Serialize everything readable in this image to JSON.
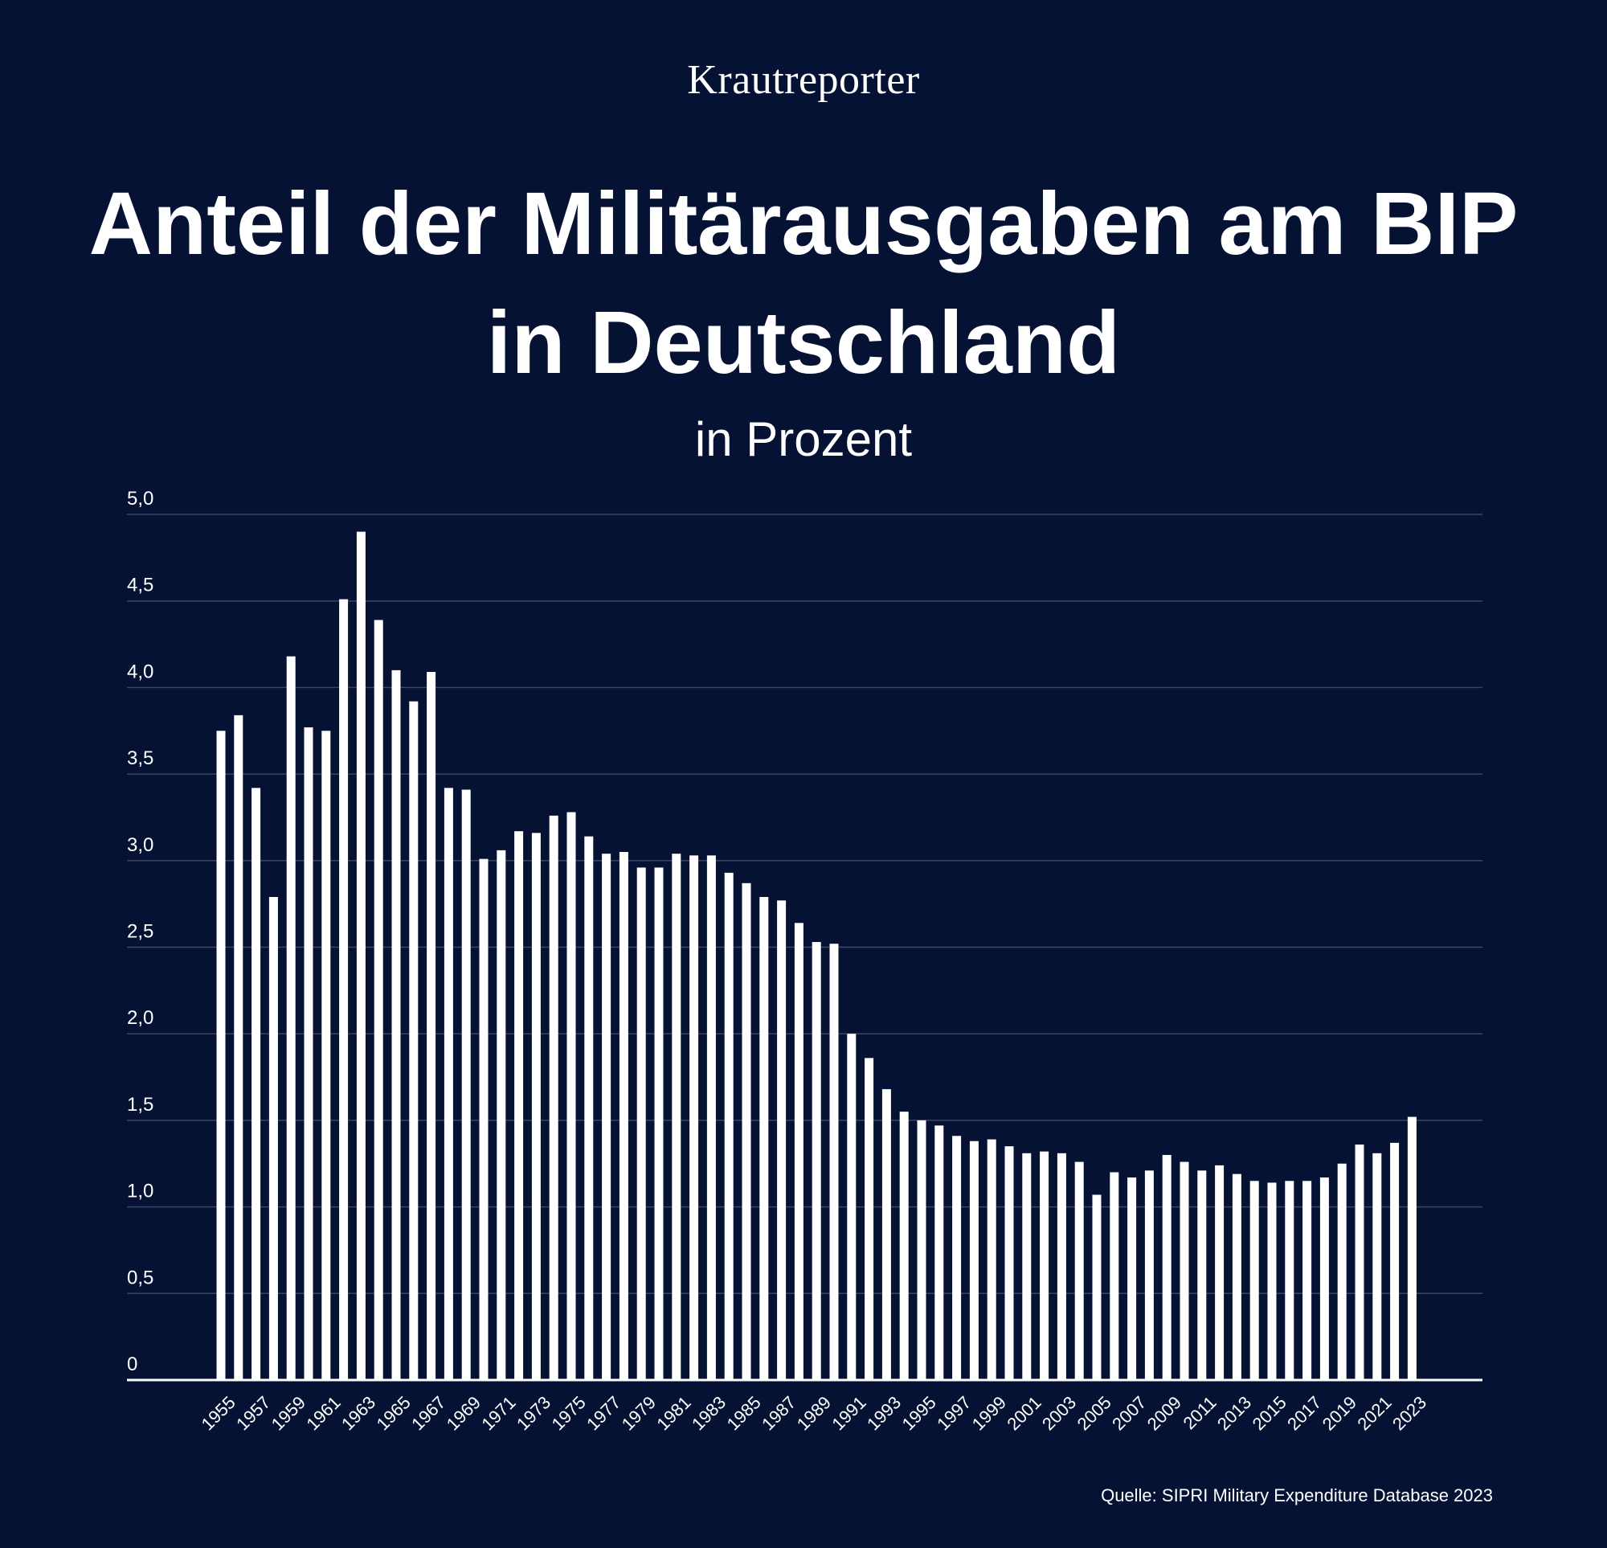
{
  "brand": "Krautreporter",
  "title_line1": "Anteil der Militärausgaben am BIP",
  "title_line2": "in Deutschland",
  "subtitle": "in Prozent",
  "source": "Quelle:  SIPRI Military Expenditure Database 2023",
  "colors": {
    "background": "#061234",
    "bar": "#ffffff",
    "grid": "#3a4566",
    "text": "#ffffff"
  },
  "chart_data": {
    "type": "bar",
    "title": "Anteil der Militärausgaben am BIP in Deutschland",
    "subtitle": "in Prozent",
    "xlabel": "",
    "ylabel": "",
    "ylim": [
      0,
      5
    ],
    "yticks": [
      0,
      0.5,
      1,
      1.5,
      2,
      2.5,
      3,
      3.5,
      4,
      4.5,
      5
    ],
    "ytick_labels": [
      "0",
      "0,5",
      "1,0",
      "1,5",
      "2,0",
      "2,5",
      "3,0",
      "3,5",
      "4,0",
      "4,5",
      "5,0"
    ],
    "grid": true,
    "categories": [
      1955,
      1956,
      1957,
      1958,
      1959,
      1960,
      1961,
      1962,
      1963,
      1964,
      1965,
      1966,
      1967,
      1968,
      1969,
      1970,
      1971,
      1972,
      1973,
      1974,
      1975,
      1976,
      1977,
      1978,
      1979,
      1980,
      1981,
      1982,
      1983,
      1984,
      1985,
      1986,
      1987,
      1988,
      1989,
      1990,
      1991,
      1992,
      1993,
      1994,
      1995,
      1996,
      1997,
      1998,
      1999,
      2000,
      2001,
      2002,
      2003,
      2004,
      2005,
      2006,
      2007,
      2008,
      2009,
      2010,
      2011,
      2012,
      2013,
      2014,
      2015,
      2016,
      2017,
      2018,
      2019,
      2020,
      2021,
      2022,
      2023
    ],
    "xtick_labels": [
      "1955",
      "1957",
      "1959",
      "1961",
      "1963",
      "1965",
      "1967",
      "1969",
      "1971",
      "1973",
      "1975",
      "1977",
      "1979",
      "1981",
      "1983",
      "1985",
      "1987",
      "1989",
      "1991",
      "1993",
      "1995",
      "1997",
      "1999",
      "2001",
      "2003",
      "2005",
      "2007",
      "2009",
      "2011",
      "2013",
      "2015",
      "2017",
      "2019",
      "2021",
      "2023"
    ],
    "values": [
      3.75,
      3.84,
      3.42,
      2.79,
      4.18,
      3.77,
      3.75,
      4.51,
      4.9,
      4.39,
      4.1,
      3.92,
      4.09,
      3.42,
      3.41,
      3.01,
      3.06,
      3.17,
      3.16,
      3.26,
      3.28,
      3.14,
      3.04,
      3.05,
      2.96,
      2.96,
      3.04,
      3.03,
      3.03,
      2.93,
      2.87,
      2.79,
      2.77,
      2.64,
      2.53,
      2.52,
      2.0,
      1.86,
      1.68,
      1.55,
      1.5,
      1.47,
      1.41,
      1.38,
      1.39,
      1.35,
      1.31,
      1.32,
      1.31,
      1.26,
      1.07,
      1.2,
      1.17,
      1.21,
      1.3,
      1.26,
      1.21,
      1.24,
      1.19,
      1.15,
      1.14,
      1.15,
      1.15,
      1.17,
      1.25,
      1.36,
      1.31,
      1.37,
      1.52
    ]
  }
}
